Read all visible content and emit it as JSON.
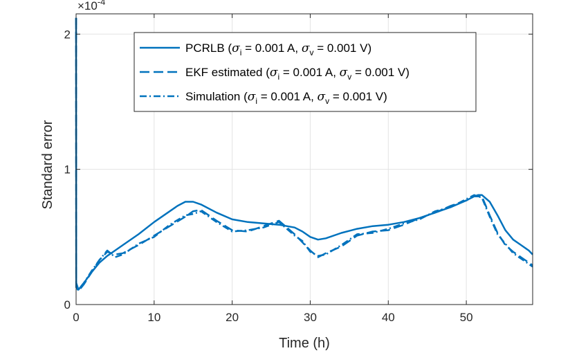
{
  "chart_data": {
    "type": "line",
    "xlabel": "Time (h)",
    "ylabel": "Standard error",
    "y_exponent_label": "×10",
    "y_exponent_power": "-4",
    "xlim": [
      0,
      58.5
    ],
    "ylim": [
      0,
      2.15
    ],
    "y_scale_factor": 0.0001,
    "x_ticks": [
      0,
      10,
      20,
      30,
      40,
      50
    ],
    "x_tick_labels": [
      "0",
      "10",
      "20",
      "30",
      "40",
      "50"
    ],
    "y_ticks": [
      0,
      1,
      2
    ],
    "y_tick_labels": [
      "0",
      "1",
      "2"
    ],
    "grid": true,
    "legend_position": "top-center",
    "color": "#0072BD",
    "series": [
      {
        "name": "PCRLB",
        "legend": {
          "prefix": "PCRLB (",
          "sig1": "σ",
          "sub1": "i",
          "mid": " = 0.001 A, ",
          "sig2": "σ",
          "sub2": "v",
          "suffix": " = 0.001 V)"
        },
        "style": "solid",
        "x": [
          0,
          0.02,
          0.3,
          1,
          2,
          3,
          4,
          5,
          6,
          8,
          10,
          12,
          13,
          14,
          15,
          16,
          18,
          20,
          22,
          24,
          26,
          28,
          29,
          30,
          31,
          32,
          34,
          36,
          38,
          40,
          42,
          44,
          46,
          48,
          50,
          51,
          51.5,
          52,
          53,
          54,
          55,
          56,
          57,
          58,
          58.5
        ],
        "y": [
          2.12,
          0.16,
          0.11,
          0.16,
          0.24,
          0.31,
          0.36,
          0.4,
          0.44,
          0.52,
          0.61,
          0.69,
          0.73,
          0.76,
          0.76,
          0.74,
          0.68,
          0.63,
          0.61,
          0.6,
          0.59,
          0.57,
          0.54,
          0.5,
          0.48,
          0.49,
          0.53,
          0.56,
          0.58,
          0.59,
          0.61,
          0.64,
          0.68,
          0.72,
          0.77,
          0.8,
          0.81,
          0.81,
          0.76,
          0.66,
          0.55,
          0.48,
          0.44,
          0.4,
          0.37
        ]
      },
      {
        "name": "EKF estimated",
        "legend": {
          "prefix": "EKF estimated (",
          "sig1": "σ",
          "sub1": "i",
          "mid": " = 0.001 A, ",
          "sig2": "σ",
          "sub2": "v",
          "suffix": " = 0.001 V)"
        },
        "style": "dashed",
        "x": [
          0,
          0.02,
          0.3,
          1,
          2,
          3,
          4,
          5,
          6,
          8,
          10,
          12,
          14,
          15,
          16,
          18,
          20,
          22,
          24,
          26,
          28,
          29,
          30,
          31,
          32,
          34,
          36,
          38,
          40,
          42,
          44,
          46,
          48,
          50,
          51,
          52,
          53,
          54,
          55,
          56,
          57,
          58,
          58.5
        ],
        "y": [
          2.12,
          0.13,
          0.1,
          0.15,
          0.24,
          0.33,
          0.39,
          0.37,
          0.38,
          0.44,
          0.51,
          0.58,
          0.65,
          0.69,
          0.7,
          0.62,
          0.55,
          0.54,
          0.58,
          0.62,
          0.52,
          0.46,
          0.4,
          0.35,
          0.38,
          0.43,
          0.51,
          0.54,
          0.55,
          0.59,
          0.64,
          0.68,
          0.73,
          0.77,
          0.8,
          0.8,
          0.66,
          0.53,
          0.44,
          0.39,
          0.35,
          0.31,
          0.29
        ]
      },
      {
        "name": "Simulation",
        "legend": {
          "prefix": "Simulation (",
          "sig1": "σ",
          "sub1": "i",
          "mid": " = 0.001 A, ",
          "sig2": "σ",
          "sub2": "v",
          "suffix": " = 0.001 V)"
        },
        "style": "dashdot",
        "x": [
          0,
          0.02,
          0.3,
          1,
          2,
          3,
          4,
          5,
          6,
          8,
          10,
          12,
          14,
          15,
          16,
          18,
          20,
          22,
          24,
          26,
          28,
          29,
          30,
          31,
          32,
          34,
          36,
          38,
          40,
          42,
          44,
          46,
          48,
          50,
          51,
          52,
          53,
          54,
          55,
          56,
          57,
          58,
          58.5
        ],
        "y": [
          2.12,
          0.12,
          0.11,
          0.16,
          0.25,
          0.33,
          0.4,
          0.35,
          0.37,
          0.45,
          0.5,
          0.59,
          0.66,
          0.67,
          0.69,
          0.61,
          0.54,
          0.55,
          0.57,
          0.61,
          0.51,
          0.47,
          0.39,
          0.36,
          0.37,
          0.44,
          0.52,
          0.53,
          0.56,
          0.6,
          0.63,
          0.69,
          0.72,
          0.78,
          0.81,
          0.79,
          0.65,
          0.52,
          0.45,
          0.38,
          0.34,
          0.3,
          0.28
        ]
      }
    ]
  }
}
